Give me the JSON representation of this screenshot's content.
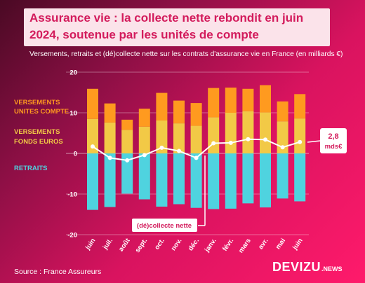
{
  "header": {
    "title_line1": "Assurance vie : la collecte nette rebondit en juin",
    "title_line2": "2024, soutenue par les unités de compte",
    "subtitle": "Versements, retraits et (dé)collecte nette sur les contrats d'assurance vie en France (en milliards €)"
  },
  "legend": {
    "uc_line1": "VERSEMENTS",
    "uc_line2": "UNITES COMPTE",
    "euros_line1": "VERSEMENTS",
    "euros_line2": "FONDS EUROS",
    "retraits": "RETRAITS"
  },
  "footer": {
    "source": "Source : France Assureurs",
    "brand": "DEVIZU",
    "brand_suffix": ".NEWS"
  },
  "colors": {
    "uc": "#ff9a1f",
    "euros": "#f2c946",
    "retraits": "#4fd3df",
    "net_line": "#ffffff",
    "title_text": "#d31b5c",
    "title_bg": "#fbe3ea"
  },
  "chart_data": {
    "type": "bar",
    "categories": [
      "juin",
      "juil.",
      "août",
      "sept.",
      "oct.",
      "nov.",
      "déc.",
      "janv.",
      "févr.",
      "mars",
      "avr.",
      "mai",
      "juin"
    ],
    "series": [
      {
        "name": "VERSEMENTS FONDS EUROS",
        "values": [
          8.5,
          7.6,
          5.8,
          6.6,
          8.1,
          7.4,
          6.8,
          8.9,
          10.0,
          10.4,
          10.1,
          7.9,
          8.6
        ]
      },
      {
        "name": "VERSEMENTS UNITES COMPTE",
        "values": [
          7.4,
          4.7,
          2.5,
          4.4,
          6.8,
          5.6,
          5.6,
          7.2,
          6.2,
          5.5,
          6.7,
          4.9,
          6.0
        ]
      },
      {
        "name": "RETRAITS",
        "values": [
          -13.9,
          -13.2,
          -9.9,
          -11.3,
          -13.1,
          -12.5,
          -13.4,
          -13.7,
          -13.6,
          -12.3,
          -13.3,
          -11.1,
          -11.8
        ]
      },
      {
        "name": "(dé)collecte nette",
        "values": [
          1.7,
          -1.1,
          -1.7,
          -0.4,
          1.4,
          0.6,
          -1.1,
          2.5,
          2.6,
          3.5,
          3.4,
          1.5,
          2.8
        ]
      }
    ],
    "y_ticks": [
      20,
      10,
      0,
      -10,
      -20
    ],
    "ylim": [
      -20,
      20
    ],
    "annotations": {
      "last_value_line1": "2,8",
      "last_value_line2": "mds€",
      "net_label": "(dé)collecte nette"
    }
  }
}
